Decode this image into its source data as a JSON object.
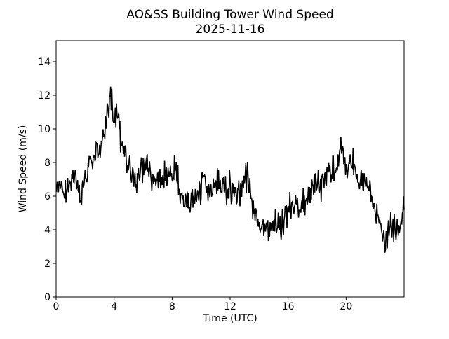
{
  "figure": {
    "background": "#ffffff",
    "foreground": "#000000"
  },
  "chart_data": {
    "type": "line",
    "title": "AO&SS Building Tower Wind Speed",
    "subtitle": "2025-11-16",
    "xlabel": "Time (UTC)",
    "ylabel": "Wind Speed (m/s)",
    "xlim": [
      0,
      24
    ],
    "ylim": [
      0,
      15.25
    ],
    "x_ticks": [
      0,
      4,
      8,
      12,
      16,
      20
    ],
    "y_ticks": [
      0,
      2,
      4,
      6,
      8,
      10,
      12,
      14
    ],
    "grid": false,
    "legend": false,
    "line_color": "#000000",
    "line_width": 1.6,
    "series": [
      {
        "name": "wind_speed_m_per_s",
        "x_start_hours": 0,
        "x_step_hours": 0.25,
        "trend_values": [
          6.3,
          6.6,
          6.2,
          6.5,
          6.6,
          7.0,
          6.2,
          5.8,
          7.4,
          7.8,
          7.9,
          8.3,
          8.6,
          9.8,
          10.6,
          12.1,
          10.3,
          10.9,
          9.0,
          8.5,
          7.6,
          7.2,
          7.0,
          7.3,
          7.5,
          8.3,
          7.2,
          6.8,
          7.2,
          6.6,
          7.4,
          6.6,
          7.3,
          7.8,
          6.4,
          5.9,
          5.6,
          5.3,
          6.0,
          6.2,
          6.4,
          7.2,
          6.4,
          6.2,
          6.7,
          7.1,
          6.3,
          6.1,
          6.6,
          6.3,
          6.1,
          6.5,
          7.3,
          6.9,
          5.6,
          5.1,
          4.6,
          4.4,
          4.1,
          3.9,
          4.7,
          4.4,
          4.2,
          4.8,
          5.1,
          5.4,
          5.6,
          5.2,
          5.8,
          5.5,
          6.1,
          6.4,
          6.9,
          6.5,
          7.0,
          7.3,
          7.6,
          7.2,
          8.6,
          8.9,
          7.6,
          8.2,
          7.9,
          7.3,
          6.8,
          6.9,
          6.4,
          5.9,
          5.3,
          4.7,
          3.9,
          3.3,
          4.2,
          4.0,
          3.8,
          4.3,
          5.6
        ],
        "noise_amplitude": 1.1,
        "noise_seed": 9,
        "render_step_hours": 0.04
      }
    ]
  }
}
